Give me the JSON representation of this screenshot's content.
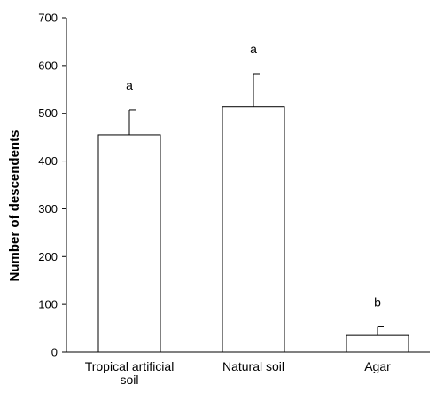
{
  "chart_data": {
    "type": "bar",
    "title": "",
    "xlabel": "",
    "ylabel": "Number of descendents",
    "ylim": [
      0,
      700
    ],
    "yticks": [
      0,
      100,
      200,
      300,
      400,
      500,
      600,
      700
    ],
    "grid": false,
    "legend": "none",
    "categories": [
      "Tropical artificial soil",
      "Natural soil",
      "Agar"
    ],
    "category_labels": [
      [
        "Tropical artificial",
        "soil"
      ],
      [
        "Natural soil"
      ],
      [
        "Agar"
      ]
    ],
    "values": [
      455,
      513,
      35
    ],
    "error": [
      52,
      70,
      18
    ],
    "significance": [
      "a",
      "a",
      "b"
    ],
    "bar_fill": "#ffffff",
    "bar_stroke": "#000000"
  }
}
